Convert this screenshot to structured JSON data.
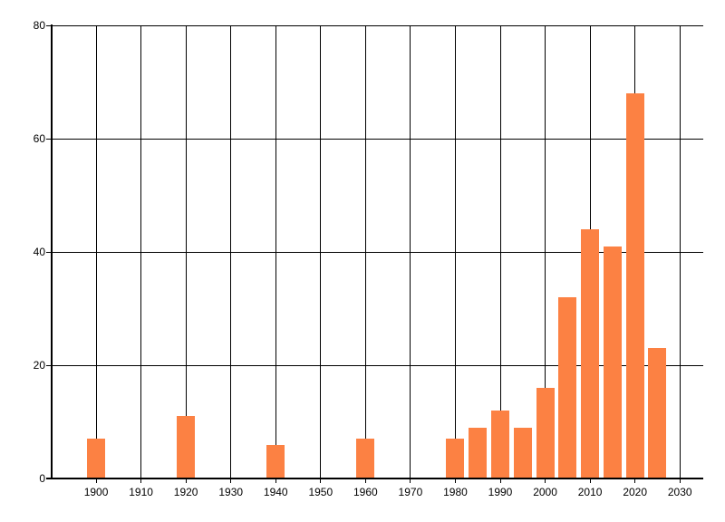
{
  "chart_data": {
    "type": "bar",
    "title": "",
    "xlabel": "",
    "ylabel": "",
    "x": [
      1900,
      1920,
      1940,
      1960,
      1980,
      1985,
      1990,
      1995,
      2000,
      2005,
      2010,
      2015,
      2020,
      2025
    ],
    "values": [
      7,
      11,
      6,
      7,
      7,
      9,
      12,
      9,
      16,
      32,
      44,
      41,
      68,
      23
    ],
    "x_tick_values": [
      1900,
      1910,
      1920,
      1930,
      1940,
      1950,
      1960,
      1970,
      1980,
      1990,
      2000,
      2010,
      2020,
      2030
    ],
    "x_tick_labels": [
      "1900",
      "1910",
      "1920",
      "1930",
      "1940",
      "1950",
      "1960",
      "1970",
      "1980",
      "1990",
      "2000",
      "2010",
      "2020",
      "2030"
    ],
    "y_tick_values": [
      0,
      20,
      40,
      60,
      80
    ],
    "y_tick_labels": [
      "0",
      "20",
      "40",
      "60",
      "80"
    ],
    "xlim": [
      1890,
      2035
    ],
    "ylim": [
      0,
      80
    ],
    "grid": true,
    "legend": false,
    "bar_width_years": 4,
    "colors": {
      "bar": "#fc8143",
      "grid": "#000000",
      "axis": "#000000",
      "text": "#000000",
      "background": "#ffffff"
    }
  }
}
